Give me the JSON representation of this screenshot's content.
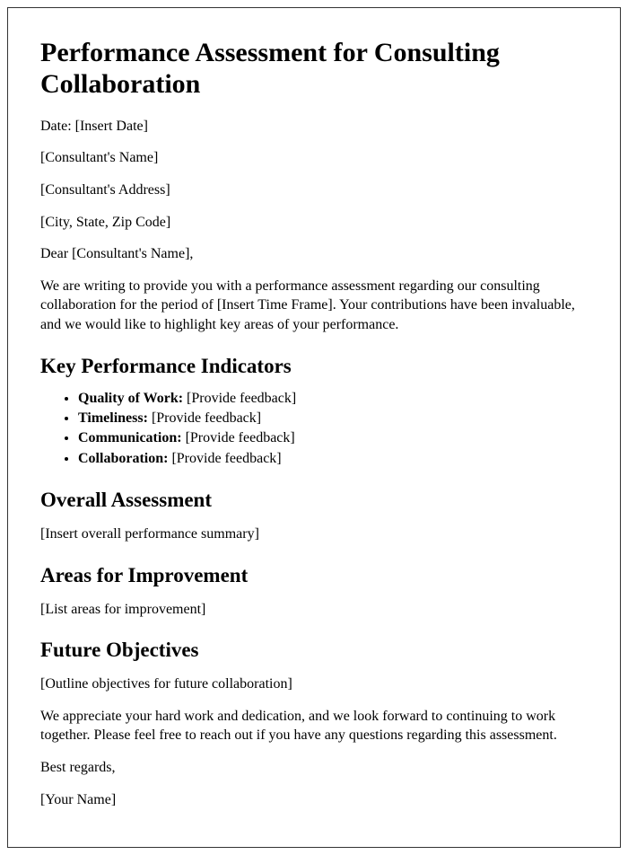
{
  "title": "Performance Assessment for Consulting Collaboration",
  "date_line": "Date: [Insert Date]",
  "consultant_name": "[Consultant's Name]",
  "consultant_address": "[Consultant's Address]",
  "city_state_zip": "[City, State, Zip Code]",
  "salutation": "Dear [Consultant's Name],",
  "intro_paragraph": "We are writing to provide you with a performance assessment regarding our consulting collaboration for the period of [Insert Time Frame]. Your contributions have been invaluable, and we would like to highlight key areas of your performance.",
  "kpi_heading": "Key Performance Indicators",
  "kpis": [
    {
      "label": "Quality of Work:",
      "value": " [Provide feedback]"
    },
    {
      "label": "Timeliness:",
      "value": " [Provide feedback]"
    },
    {
      "label": "Communication:",
      "value": " [Provide feedback]"
    },
    {
      "label": "Collaboration:",
      "value": " [Provide feedback]"
    }
  ],
  "overall_heading": "Overall Assessment",
  "overall_text": "[Insert overall performance summary]",
  "improve_heading": "Areas for Improvement",
  "improve_text": "[List areas for improvement]",
  "future_heading": "Future Objectives",
  "future_text": "[Outline objectives for future collaboration]",
  "closing_paragraph": "We appreciate your hard work and dedication, and we look forward to continuing to work together. Please feel free to reach out if you have any questions regarding this assessment.",
  "signoff": "Best regards,",
  "sender_name": "[Your Name]"
}
